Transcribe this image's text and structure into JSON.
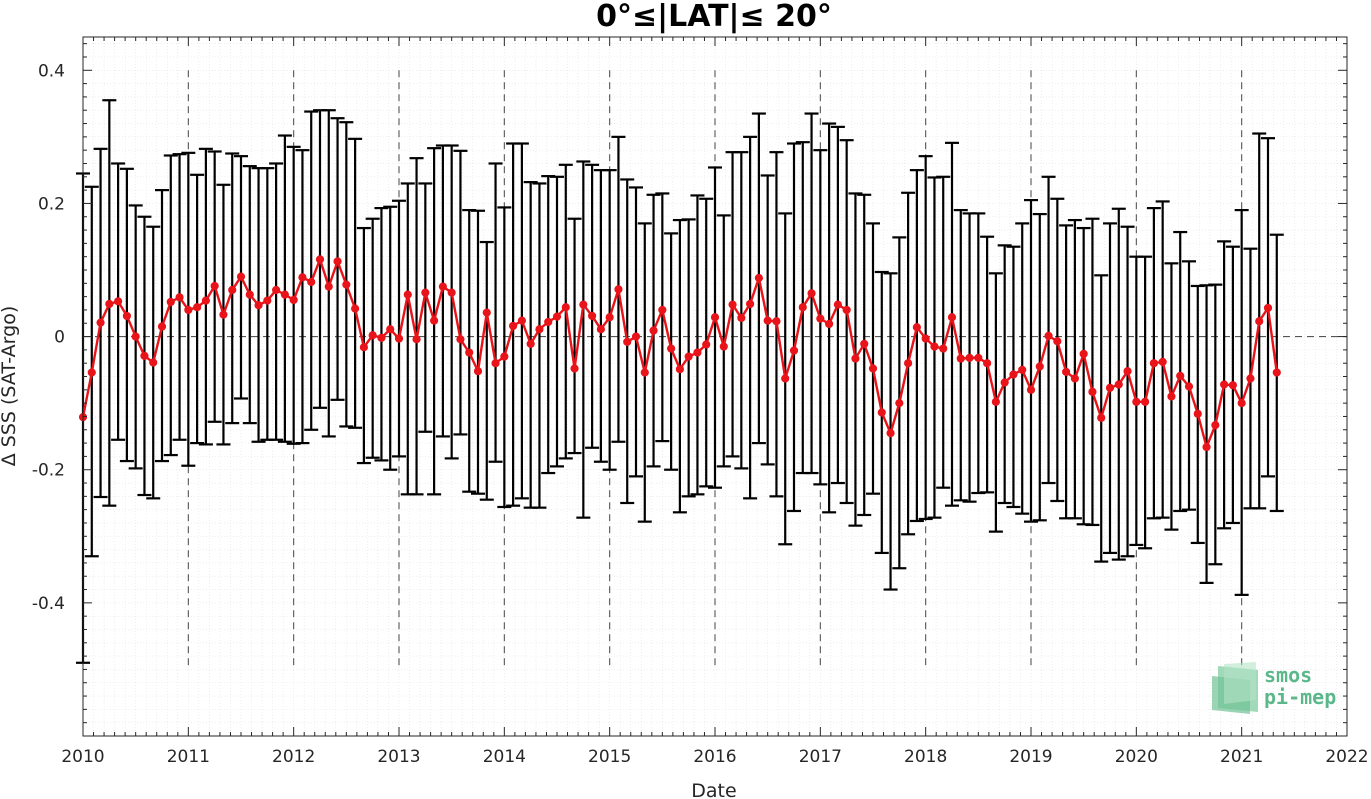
{
  "chart_data": {
    "type": "line",
    "title": "0°≤|LAT|≤ 20°",
    "xlabel": "Date",
    "ylabel": "Δ SSS (SAT-Argo)",
    "xlim": [
      2010,
      2022
    ],
    "ylim": [
      -0.6,
      0.45
    ],
    "x_ticks": [
      "2010",
      "2011",
      "2012",
      "2013",
      "2014",
      "2015",
      "2016",
      "2017",
      "2018",
      "2019",
      "2020",
      "2021",
      "2022"
    ],
    "y_ticks": [
      "0.4",
      "0.2",
      "0",
      "-0.2",
      "-0.4"
    ],
    "grid": "minor dotted",
    "year_lines": "dashed vertical lines at each January, y from 0.4 to -0.5",
    "zero_line": "dashed horizontal",
    "colors": {
      "mean_line": "#e8141a",
      "error_bars": "#000000",
      "background": "#ffffff"
    },
    "series": [
      {
        "marker": "circle",
        "x_start": "2010-01",
        "x_step": "monthly",
        "values": [
          -0.121,
          -0.054,
          0.021,
          0.049,
          0.053,
          0.031,
          0.0,
          -0.029,
          -0.039,
          0.015,
          0.052,
          0.059,
          0.04,
          0.044,
          0.054,
          0.076,
          0.033,
          0.07,
          0.09,
          0.063,
          0.047,
          0.054,
          0.07,
          0.063,
          0.055,
          0.089,
          0.082,
          0.116,
          0.075,
          0.113,
          0.078,
          0.042,
          -0.016,
          0.002,
          -0.002,
          0.011,
          -0.003,
          0.063,
          -0.004,
          0.066,
          0.024,
          0.075,
          0.066,
          -0.004,
          -0.024,
          -0.052,
          0.036,
          -0.04,
          -0.03,
          0.016,
          0.024,
          -0.011,
          0.011,
          0.022,
          0.03,
          0.044,
          -0.048,
          0.048,
          0.031,
          0.011,
          0.029,
          0.071,
          -0.008,
          0.0,
          -0.054,
          0.009,
          0.04,
          -0.018,
          -0.049,
          -0.03,
          -0.024,
          -0.012,
          0.029,
          -0.015,
          0.048,
          0.028,
          0.049,
          0.088,
          0.024,
          0.023,
          -0.063,
          -0.021,
          0.044,
          0.065,
          0.027,
          0.019,
          0.048,
          0.04,
          -0.033,
          -0.011,
          -0.048,
          -0.114,
          -0.145,
          -0.1,
          -0.04,
          0.014,
          -0.003,
          -0.015,
          -0.018,
          0.029,
          -0.033,
          -0.032,
          -0.032,
          -0.04,
          -0.098,
          -0.069,
          -0.057,
          -0.05,
          -0.08,
          -0.045,
          0.001,
          -0.007,
          -0.053,
          -0.063,
          -0.026,
          -0.083,
          -0.122,
          -0.077,
          -0.072,
          -0.052,
          -0.098,
          -0.098,
          -0.04,
          -0.038,
          -0.09,
          -0.059,
          -0.075,
          -0.116,
          -0.166,
          -0.133,
          -0.072,
          -0.073,
          -0.1,
          -0.063,
          0.023,
          0.043,
          -0.054
        ],
        "err_upper": [
          0.245,
          0.225,
          0.282,
          0.355,
          0.26,
          0.252,
          0.197,
          0.18,
          0.165,
          0.22,
          0.272,
          0.274,
          0.276,
          0.243,
          0.282,
          0.278,
          0.228,
          0.275,
          0.271,
          0.256,
          0.253,
          0.253,
          0.26,
          0.302,
          0.285,
          0.28,
          0.338,
          0.34,
          0.34,
          0.328,
          0.322,
          0.297,
          0.163,
          0.177,
          0.193,
          0.195,
          0.204,
          0.23,
          0.268,
          0.23,
          0.283,
          0.287,
          0.287,
          0.279,
          0.19,
          0.189,
          0.142,
          0.26,
          0.194,
          0.29,
          0.29,
          0.232,
          0.23,
          0.241,
          0.24,
          0.258,
          0.177,
          0.263,
          0.258,
          0.25,
          0.25,
          0.3,
          0.236,
          0.224,
          0.17,
          0.213,
          0.215,
          0.155,
          0.175,
          0.176,
          0.212,
          0.207,
          0.254,
          0.182,
          0.277,
          0.277,
          0.3,
          0.335,
          0.242,
          0.277,
          0.185,
          0.29,
          0.292,
          0.335,
          0.28,
          0.32,
          0.315,
          0.295,
          0.215,
          0.213,
          0.17,
          0.097,
          0.095,
          0.149,
          0.216,
          0.25,
          0.271,
          0.239,
          0.24,
          0.291,
          0.19,
          0.185,
          0.185,
          0.15,
          0.095,
          0.137,
          0.135,
          0.17,
          0.205,
          0.184,
          0.24,
          0.207,
          0.167,
          0.175,
          0.163,
          0.177,
          0.092,
          0.17,
          0.192,
          0.165,
          0.12,
          0.12,
          0.193,
          0.203,
          0.11,
          0.157,
          0.113,
          0.076,
          0.077,
          0.078,
          0.143,
          0.135,
          0.19,
          0.132,
          0.305,
          0.298,
          0.153
        ],
        "err_lower": [
          -0.49,
          -0.33,
          -0.241,
          -0.254,
          -0.155,
          -0.187,
          -0.198,
          -0.238,
          -0.243,
          -0.187,
          -0.178,
          -0.155,
          -0.194,
          -0.16,
          -0.162,
          -0.128,
          -0.162,
          -0.13,
          -0.093,
          -0.13,
          -0.158,
          -0.155,
          -0.155,
          -0.158,
          -0.161,
          -0.16,
          -0.14,
          -0.107,
          -0.15,
          -0.095,
          -0.135,
          -0.137,
          -0.19,
          -0.182,
          -0.186,
          -0.2,
          -0.18,
          -0.237,
          -0.237,
          -0.143,
          -0.237,
          -0.15,
          -0.183,
          -0.147,
          -0.233,
          -0.236,
          -0.245,
          -0.188,
          -0.256,
          -0.254,
          -0.243,
          -0.257,
          -0.257,
          -0.205,
          -0.195,
          -0.183,
          -0.175,
          -0.272,
          -0.167,
          -0.188,
          -0.2,
          -0.158,
          -0.25,
          -0.21,
          -0.278,
          -0.195,
          -0.157,
          -0.2,
          -0.264,
          -0.24,
          -0.237,
          -0.225,
          -0.227,
          -0.195,
          -0.18,
          -0.198,
          -0.243,
          -0.16,
          -0.192,
          -0.24,
          -0.312,
          -0.262,
          -0.205,
          -0.205,
          -0.222,
          -0.264,
          -0.22,
          -0.25,
          -0.284,
          -0.268,
          -0.236,
          -0.325,
          -0.38,
          -0.348,
          -0.297,
          -0.277,
          -0.274,
          -0.272,
          -0.227,
          -0.254,
          -0.246,
          -0.248,
          -0.235,
          -0.234,
          -0.293,
          -0.25,
          -0.256,
          -0.266,
          -0.278,
          -0.276,
          -0.22,
          -0.247,
          -0.273,
          -0.273,
          -0.282,
          -0.283,
          -0.338,
          -0.325,
          -0.335,
          -0.33,
          -0.313,
          -0.318,
          -0.273,
          -0.272,
          -0.29,
          -0.262,
          -0.26,
          -0.31,
          -0.37,
          -0.342,
          -0.288,
          -0.28,
          -0.388,
          -0.258,
          -0.258,
          -0.21,
          -0.262
        ]
      }
    ]
  },
  "logo": {
    "line1": "smos",
    "line2": "pi-mep",
    "color": "#5cb88a"
  }
}
